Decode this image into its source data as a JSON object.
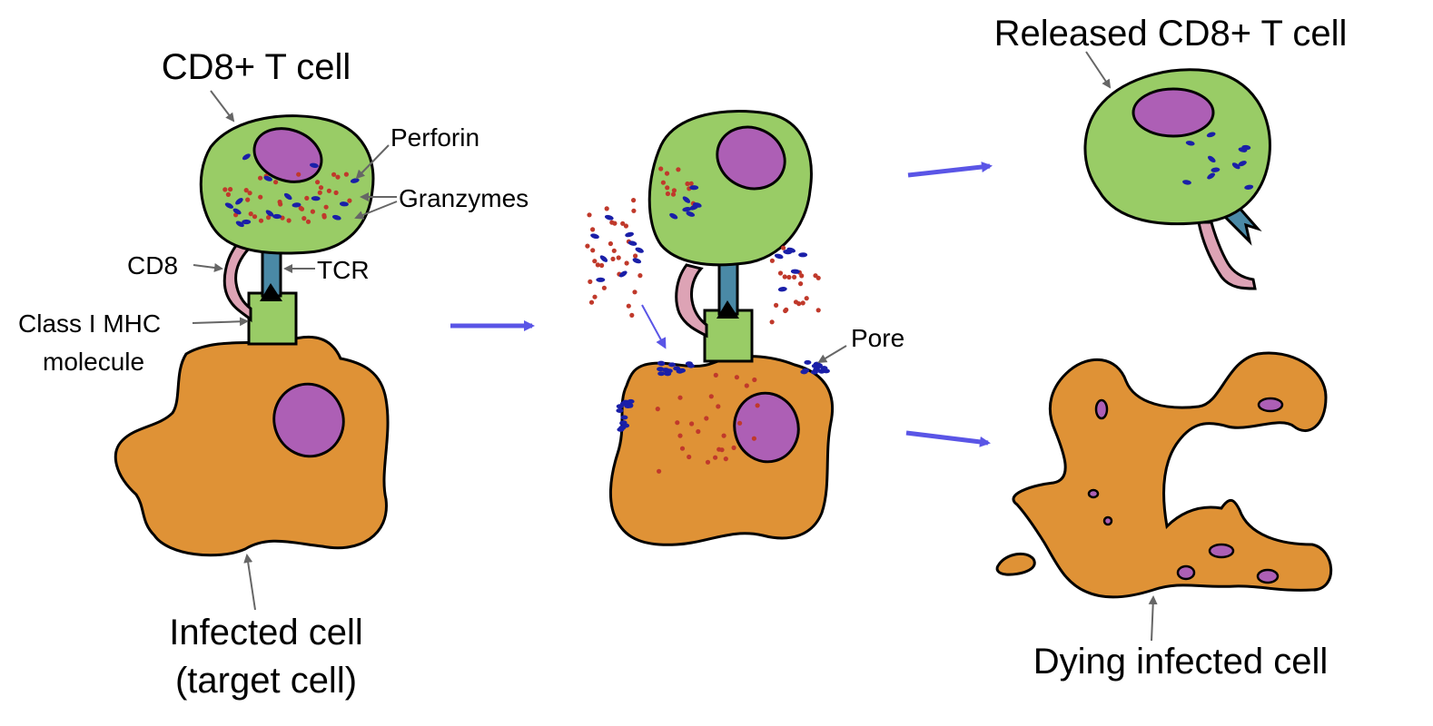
{
  "colors": {
    "tcell": "#99cc66",
    "nucleus": "#ad5fb5",
    "infected": "#df9236",
    "granzyme": "#c0392b",
    "perforin": "#1a1fa8",
    "cd8": "#dda3b5",
    "tcr": "#4a89a6",
    "mhc": "#99cc66",
    "arrow": "#5a55e6",
    "pointer": "#666666"
  },
  "labels": {
    "tcell": "CD8+ T cell",
    "perforin": "Perforin",
    "granzymes": "Granzymes",
    "cd8": "CD8",
    "tcr": "TCR",
    "mhc_line1": "Class I MHC",
    "mhc_line2": "molecule",
    "infected_line1": "Infected cell",
    "infected_line2": "(target cell)",
    "pore": "Pore",
    "released": "Released CD8+ T cell",
    "dying": "Dying infected cell"
  }
}
